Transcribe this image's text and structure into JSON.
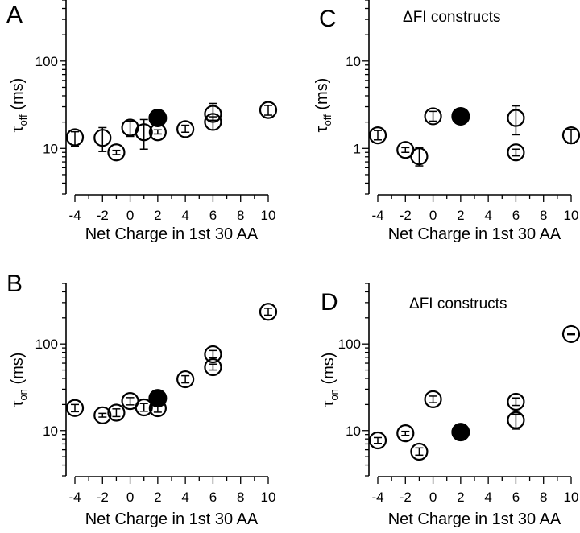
{
  "figure": {
    "panel_count": 4
  },
  "chart_data": [
    {
      "id": "A",
      "type": "scatter",
      "panel_label": "A",
      "title": "",
      "xlabel": "Net Charge in 1st 30 AA",
      "ylabel_main": "τ",
      "ylabel_sub": "off",
      "ylabel_unit": " (ms)",
      "yscale": "log",
      "ylim": [
        3,
        500
      ],
      "xlim": [
        -4,
        10
      ],
      "xticks": [
        -4,
        -2,
        0,
        2,
        4,
        6,
        8,
        10
      ],
      "xtick_labels": [
        "-4",
        "-2",
        "0",
        "2",
        "4",
        "6",
        "8",
        "10"
      ],
      "yticks": [
        10,
        100
      ],
      "ytick_labels": [
        "10",
        "100"
      ],
      "grid": false,
      "points": [
        {
          "x": -4,
          "y": 13.4,
          "lo": 10.6,
          "hi": 15.5,
          "filled": false
        },
        {
          "x": -2,
          "y": 13.2,
          "lo": 9.2,
          "hi": 17.3,
          "filled": false
        },
        {
          "x": -1,
          "y": 9.0,
          "lo": 8.5,
          "hi": 9.5,
          "filled": false
        },
        {
          "x": 0,
          "y": 17.3,
          "lo": 13.7,
          "hi": 20.5,
          "filled": false
        },
        {
          "x": 1,
          "y": 15.3,
          "lo": 9.8,
          "hi": 21.4,
          "filled": false
        },
        {
          "x": 2,
          "y": 22.3,
          "lo": 22.3,
          "hi": 22.3,
          "filled": true
        },
        {
          "x": 2,
          "y": 15.3,
          "lo": 14.6,
          "hi": 16.3,
          "filled": false
        },
        {
          "x": 4,
          "y": 16.6,
          "lo": 15.3,
          "hi": 18.4,
          "filled": false
        },
        {
          "x": 6,
          "y": 24.8,
          "lo": 21.0,
          "hi": 32.7,
          "filled": false
        },
        {
          "x": 6,
          "y": 20.1,
          "lo": 16.3,
          "hi": 23.0,
          "filled": false
        },
        {
          "x": 10,
          "y": 27.5,
          "lo": 24.0,
          "hi": 31.0,
          "filled": false
        }
      ]
    },
    {
      "id": "C",
      "type": "scatter",
      "panel_label": "C",
      "title": "ΔFI constructs",
      "xlabel": "Net Charge in 1st 30 AA",
      "ylabel_main": "τ",
      "ylabel_sub": "off",
      "ylabel_unit": " (ms)",
      "yscale": "log",
      "ylim": [
        0.3,
        50
      ],
      "xlim": [
        -4,
        10
      ],
      "xticks": [
        -4,
        -2,
        0,
        2,
        4,
        6,
        8,
        10
      ],
      "xtick_labels": [
        "-4",
        "-2",
        "0",
        "2",
        "4",
        "6",
        "8",
        "10"
      ],
      "yticks": [
        1,
        10
      ],
      "ytick_labels": [
        "1",
        "10"
      ],
      "grid": false,
      "points": [
        {
          "x": -4,
          "y": 1.41,
          "lo": 1.25,
          "hi": 1.6,
          "filled": false
        },
        {
          "x": -2,
          "y": 0.96,
          "lo": 0.9,
          "hi": 1.02,
          "filled": false
        },
        {
          "x": -1,
          "y": 0.81,
          "lo": 0.63,
          "hi": 1.02,
          "filled": false
        },
        {
          "x": 0,
          "y": 2.33,
          "lo": 2.05,
          "hi": 2.65,
          "filled": false
        },
        {
          "x": 2,
          "y": 2.33,
          "lo": 2.33,
          "hi": 2.33,
          "filled": true
        },
        {
          "x": 6,
          "y": 2.23,
          "lo": 1.43,
          "hi": 3.06,
          "filled": false
        },
        {
          "x": 6,
          "y": 0.9,
          "lo": 0.82,
          "hi": 0.98,
          "filled": false
        },
        {
          "x": 10,
          "y": 1.41,
          "lo": 1.14,
          "hi": 1.65,
          "filled": false
        }
      ]
    },
    {
      "id": "B",
      "type": "scatter",
      "panel_label": "B",
      "title": "",
      "xlabel": "Net Charge in 1st 30 AA",
      "ylabel_main": "τ",
      "ylabel_sub": "on",
      "ylabel_unit": " (ms)",
      "yscale": "log",
      "ylim": [
        3,
        500
      ],
      "xlim": [
        -4,
        10
      ],
      "xticks": [
        -4,
        -2,
        0,
        2,
        4,
        6,
        8,
        10
      ],
      "xtick_labels": [
        "-4",
        "-2",
        "0",
        "2",
        "4",
        "6",
        "8",
        "10"
      ],
      "yticks": [
        10,
        100
      ],
      "ytick_labels": [
        "10",
        "100"
      ],
      "grid": false,
      "points": [
        {
          "x": -4,
          "y": 18.2,
          "lo": 16.5,
          "hi": 20.0,
          "filled": false
        },
        {
          "x": -2,
          "y": 15.0,
          "lo": 14.3,
          "hi": 15.8,
          "filled": false
        },
        {
          "x": -1,
          "y": 16.1,
          "lo": 14.5,
          "hi": 17.8,
          "filled": false
        },
        {
          "x": 0,
          "y": 21.9,
          "lo": 19.8,
          "hi": 24.0,
          "filled": false
        },
        {
          "x": 1,
          "y": 18.5,
          "lo": 16.7,
          "hi": 20.5,
          "filled": false
        },
        {
          "x": 2,
          "y": 23.6,
          "lo": 23.6,
          "hi": 23.6,
          "filled": true
        },
        {
          "x": 2,
          "y": 18.1,
          "lo": 16.3,
          "hi": 20.0,
          "filled": false
        },
        {
          "x": 4,
          "y": 39.1,
          "lo": 35.5,
          "hi": 43.0,
          "filled": false
        },
        {
          "x": 6,
          "y": 76.0,
          "lo": 69.0,
          "hi": 84.0,
          "filled": false
        },
        {
          "x": 6,
          "y": 54.0,
          "lo": 50.0,
          "hi": 58.5,
          "filled": false
        },
        {
          "x": 10,
          "y": 235.0,
          "lo": 215.0,
          "hi": 258.0,
          "filled": false
        }
      ]
    },
    {
      "id": "D",
      "type": "scatter",
      "panel_label": "D",
      "title": "ΔFI constructs",
      "xlabel": "Net Charge in 1st 30 AA",
      "ylabel_main": "τ",
      "ylabel_sub": "on",
      "ylabel_unit": " (ms)",
      "yscale": "log",
      "ylim": [
        3,
        500
      ],
      "xlim": [
        -4,
        10
      ],
      "xticks": [
        -4,
        -2,
        0,
        2,
        4,
        6,
        8,
        10
      ],
      "xtick_labels": [
        "-4",
        "-2",
        "0",
        "2",
        "4",
        "6",
        "8",
        "10"
      ],
      "yticks": [
        10,
        100
      ],
      "ytick_labels": [
        "10",
        "100"
      ],
      "grid": false,
      "points": [
        {
          "x": -4,
          "y": 7.7,
          "lo": 7.1,
          "hi": 8.3,
          "filled": false
        },
        {
          "x": -2,
          "y": 9.3,
          "lo": 8.8,
          "hi": 9.8,
          "filled": false
        },
        {
          "x": -1,
          "y": 5.7,
          "lo": 5.2,
          "hi": 6.3,
          "filled": false
        },
        {
          "x": 0,
          "y": 23.0,
          "lo": 21.0,
          "hi": 25.0,
          "filled": false
        },
        {
          "x": 2,
          "y": 9.6,
          "lo": 9.6,
          "hi": 9.6,
          "filled": true
        },
        {
          "x": 6,
          "y": 21.5,
          "lo": 19.5,
          "hi": 23.8,
          "filled": false
        },
        {
          "x": 6,
          "y": 13.2,
          "lo": 10.4,
          "hi": 15.5,
          "filled": false
        },
        {
          "x": 10,
          "y": 130.0,
          "lo": 128.0,
          "hi": 132.0,
          "filled": false
        }
      ]
    }
  ]
}
